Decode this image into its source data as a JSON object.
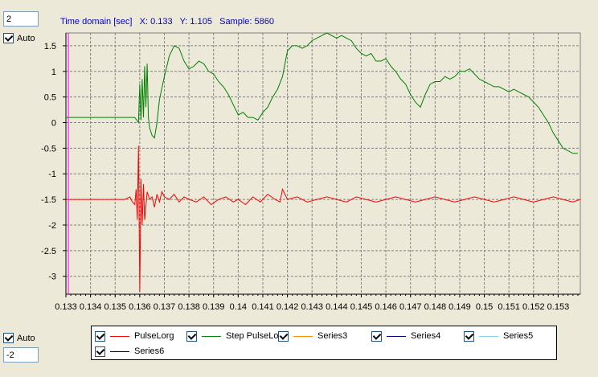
{
  "controls": {
    "ymax_value": "2",
    "ymin_value": "-2",
    "auto_top_label": "Auto",
    "auto_bottom_label": "Auto"
  },
  "status": {
    "text": "Time domain [sec]   X: 0.133   Y: 1.105   Sample: 5860"
  },
  "legend": {
    "items": [
      {
        "label": "PulseLorg",
        "color": "#FF0000",
        "checked": true
      },
      {
        "label": "Step PulseLorg",
        "color": "#008000",
        "checked": true
      },
      {
        "label": "Series3",
        "color": "#FF8C00",
        "checked": true
      },
      {
        "label": "Series4",
        "color": "#000080",
        "checked": true
      },
      {
        "label": "Series5",
        "color": "#87CEEB",
        "checked": true
      },
      {
        "label": "Series6",
        "color": "#000000",
        "checked": true
      }
    ]
  },
  "chart_data": {
    "type": "line",
    "xlim": [
      0.133,
      0.1539
    ],
    "ylim": [
      -3.35,
      1.75
    ],
    "x_ticks": [
      0.133,
      0.134,
      0.135,
      0.136,
      0.137,
      0.138,
      0.139,
      0.14,
      0.141,
      0.142,
      0.143,
      0.144,
      0.145,
      0.146,
      0.147,
      0.148,
      0.149,
      0.15,
      0.151,
      0.152,
      0.153
    ],
    "x_tick_labels": [
      "0.133",
      "0.134",
      "0.135",
      "0.136",
      "0.137",
      "0.138",
      "0.139",
      "0.14",
      "0.141",
      "0.142",
      "0.143",
      "0.144",
      "0.145",
      "0.146",
      "0.147",
      "0.148",
      "0.149",
      "0.15",
      "0.151",
      "0.152",
      "0.153"
    ],
    "y_ticks": [
      1.5,
      1,
      0.5,
      0,
      -0.5,
      -1,
      -1.5,
      -2,
      -2.5,
      -3
    ],
    "y_tick_labels": [
      "1.5",
      "1",
      "0.5",
      "0",
      "-0.5",
      "-1",
      "-1.5",
      "-2",
      "-2.5",
      "-3"
    ],
    "grid": true,
    "cursor_x": 0.1331,
    "series": [
      {
        "name": "Step PulseLorg",
        "color": "#008000",
        "x": [
          0.133,
          0.1358,
          0.13595,
          0.136,
          0.13605,
          0.1361,
          0.13615,
          0.1362,
          0.13625,
          0.1363,
          0.13635,
          0.1364,
          0.1365,
          0.1366,
          0.1367,
          0.1368,
          0.137,
          0.1372,
          0.1374,
          0.1376,
          0.1378,
          0.138,
          0.1382,
          0.1384,
          0.1386,
          0.1388,
          0.139,
          0.1392,
          0.1394,
          0.1396,
          0.1398,
          0.14,
          0.1402,
          0.1404,
          0.1406,
          0.1408,
          0.141,
          0.1412,
          0.1414,
          0.1416,
          0.1418,
          0.142,
          0.1422,
          0.1424,
          0.1426,
          0.1428,
          0.143,
          0.1432,
          0.1434,
          0.1436,
          0.1438,
          0.144,
          0.1442,
          0.1444,
          0.1446,
          0.1448,
          0.145,
          0.1452,
          0.1454,
          0.1456,
          0.1458,
          0.146,
          0.1462,
          0.1464,
          0.1466,
          0.1468,
          0.147,
          0.1472,
          0.1474,
          0.1476,
          0.1478,
          0.148,
          0.1482,
          0.1484,
          0.1486,
          0.1488,
          0.149,
          0.1492,
          0.1494,
          0.1496,
          0.1498,
          0.15,
          0.1502,
          0.1504,
          0.1506,
          0.1508,
          0.151,
          0.1512,
          0.1514,
          0.1516,
          0.1518,
          0.152,
          0.1522,
          0.1524,
          0.1526,
          0.1528,
          0.153,
          0.1532,
          0.1534,
          0.1536,
          0.1538
        ],
        "y": [
          0.1,
          0.1,
          0.0,
          0.75,
          0.05,
          0.85,
          0.1,
          1.1,
          0.3,
          1.15,
          0.1,
          -0.1,
          -0.25,
          -0.3,
          0.0,
          0.45,
          0.9,
          1.3,
          1.5,
          1.45,
          1.2,
          1.05,
          1.1,
          1.2,
          1.15,
          1.0,
          0.95,
          0.8,
          0.7,
          0.55,
          0.35,
          0.15,
          0.2,
          0.1,
          0.1,
          0.05,
          0.2,
          0.3,
          0.5,
          0.65,
          0.9,
          1.4,
          1.5,
          1.5,
          1.45,
          1.5,
          1.6,
          1.65,
          1.7,
          1.75,
          1.7,
          1.65,
          1.7,
          1.65,
          1.6,
          1.45,
          1.35,
          1.3,
          1.35,
          1.2,
          1.2,
          1.25,
          1.1,
          1.0,
          0.85,
          0.75,
          0.55,
          0.4,
          0.3,
          0.55,
          0.75,
          0.8,
          0.8,
          0.9,
          0.85,
          0.9,
          1.0,
          1.0,
          1.05,
          0.95,
          0.85,
          0.8,
          0.75,
          0.7,
          0.7,
          0.65,
          0.6,
          0.65,
          0.6,
          0.55,
          0.5,
          0.4,
          0.3,
          0.15,
          0.0,
          -0.2,
          -0.35,
          -0.5,
          -0.55,
          -0.6,
          -0.6
        ]
      },
      {
        "name": "PulseLorg",
        "color": "#FF0000",
        "x": [
          0.133,
          0.1354,
          0.1356,
          0.1357,
          0.1358,
          0.13585,
          0.1359,
          0.13595,
          0.136,
          0.13605,
          0.1361,
          0.13615,
          0.1362,
          0.1363,
          0.1364,
          0.1365,
          0.1366,
          0.1367,
          0.1368,
          0.1369,
          0.137,
          0.1372,
          0.1374,
          0.1376,
          0.1378,
          0.138,
          0.1383,
          0.1386,
          0.1389,
          0.1392,
          0.1395,
          0.1398,
          0.14,
          0.1403,
          0.1406,
          0.1409,
          0.1412,
          0.1415,
          0.1417,
          0.1418,
          0.142,
          0.1424,
          0.1428,
          0.1432,
          0.1436,
          0.144,
          0.1444,
          0.1448,
          0.1452,
          0.1456,
          0.146,
          0.1464,
          0.1468,
          0.1472,
          0.1476,
          0.148,
          0.1484,
          0.1488,
          0.1492,
          0.1496,
          0.15,
          0.1504,
          0.1508,
          0.1512,
          0.1516,
          0.152,
          0.1524,
          0.1528,
          0.1532,
          0.1536,
          0.1539
        ],
        "y": [
          -1.5,
          -1.5,
          -1.45,
          -1.55,
          -1.6,
          -1.3,
          -1.9,
          -0.45,
          -3.3,
          -1.1,
          -2.0,
          -1.2,
          -1.9,
          -1.35,
          -1.5,
          -1.45,
          -1.65,
          -1.4,
          -1.55,
          -1.35,
          -1.45,
          -1.5,
          -1.4,
          -1.55,
          -1.45,
          -1.5,
          -1.55,
          -1.45,
          -1.6,
          -1.5,
          -1.45,
          -1.55,
          -1.5,
          -1.6,
          -1.45,
          -1.55,
          -1.4,
          -1.5,
          -1.55,
          -1.3,
          -1.5,
          -1.45,
          -1.55,
          -1.5,
          -1.45,
          -1.5,
          -1.55,
          -1.45,
          -1.5,
          -1.55,
          -1.5,
          -1.45,
          -1.5,
          -1.55,
          -1.5,
          -1.45,
          -1.5,
          -1.55,
          -1.5,
          -1.45,
          -1.5,
          -1.55,
          -1.5,
          -1.45,
          -1.5,
          -1.55,
          -1.5,
          -1.45,
          -1.5,
          -1.55,
          -1.5
        ]
      }
    ]
  }
}
